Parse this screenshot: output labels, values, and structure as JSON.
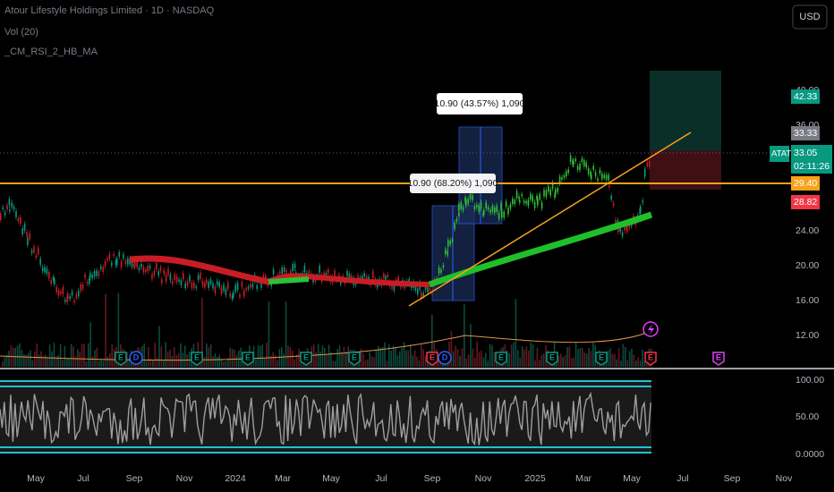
{
  "header": {
    "title": "Atour Lifestyle Holdings Limited · 1D · NASDAQ",
    "indicator_1": "Vol (20)",
    "indicator_2": "_CM_RSI_2_HB_MA",
    "currency": "USD"
  },
  "price_axis": {
    "labels": [
      "40.00",
      "36.00",
      "24.00",
      "20.00",
      "16.00",
      "12.00"
    ],
    "target": "42.33",
    "stop_level": "33.33",
    "last_price": "33.05",
    "countdown": "02:11:26",
    "symbol": "ATAT",
    "line_level": "29.40",
    "stop": "28.82"
  },
  "rsi_axis": {
    "labels": [
      "100.00",
      "50.00",
      "0.0000"
    ]
  },
  "time_axis": {
    "labels": [
      "May",
      "Jul",
      "Sep",
      "Nov",
      "2024",
      "Mar",
      "May",
      "Jul",
      "Sep",
      "Nov",
      "2025",
      "Mar",
      "May",
      "Jul",
      "Sep",
      "Nov"
    ]
  },
  "annotations": {
    "measure_upper": "10.90 (43.57%) 1,090",
    "measure_lower": "10.90 (68.20%) 1,090"
  },
  "events": [
    "E",
    "D",
    "E",
    "E",
    "E",
    "E",
    "E",
    "D",
    "E",
    "E",
    "E",
    "E",
    "E"
  ]
}
